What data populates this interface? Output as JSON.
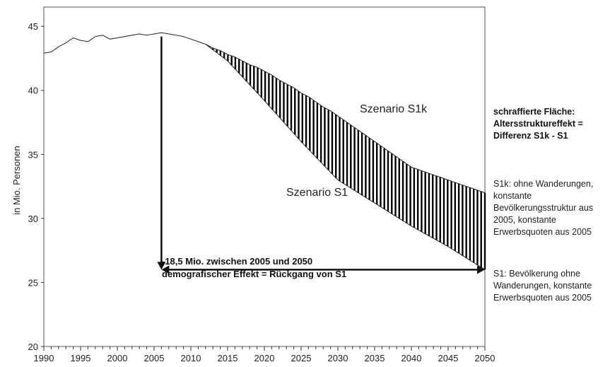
{
  "chart_data": {
    "type": "line",
    "ylabel": "in Mio. Personen",
    "xlim": [
      1990,
      2050
    ],
    "ylim": [
      20,
      46.5
    ],
    "x_ticks_labeled": [
      1990,
      1995,
      2000,
      2005,
      2010,
      2015,
      2020,
      2025,
      2030,
      2035,
      2040,
      2045,
      2050
    ],
    "y_ticks": [
      20,
      25,
      30,
      35,
      40,
      45
    ],
    "grid": false,
    "legend": "none",
    "series": [
      {
        "name": "Szenario S1k",
        "x": [
          1990,
          1991,
          1992,
          1993,
          1994,
          1995,
          1996,
          1997,
          1998,
          1999,
          2000,
          2001,
          2002,
          2003,
          2004,
          2005,
          2006,
          2007,
          2008,
          2009,
          2010,
          2011,
          2012,
          2013,
          2014,
          2015,
          2016,
          2017,
          2018,
          2019,
          2020,
          2021,
          2022,
          2023,
          2024,
          2025,
          2026,
          2027,
          2028,
          2029,
          2030,
          2031,
          2032,
          2033,
          2034,
          2035,
          2036,
          2037,
          2038,
          2039,
          2040,
          2041,
          2042,
          2043,
          2044,
          2045,
          2046,
          2047,
          2048,
          2049,
          2050
        ],
        "values": [
          42.9,
          43.0,
          43.4,
          43.7,
          44.1,
          43.9,
          43.8,
          44.2,
          44.3,
          44.0,
          44.1,
          44.2,
          44.3,
          44.4,
          44.3,
          44.4,
          44.5,
          44.4,
          44.3,
          44.2,
          44.0,
          43.8,
          43.6,
          43.3,
          43.1,
          42.8,
          42.6,
          42.3,
          42.0,
          41.8,
          41.5,
          41.2,
          40.8,
          40.5,
          40.2,
          39.8,
          39.5,
          39.1,
          38.7,
          38.4,
          38.0,
          37.6,
          37.2,
          36.8,
          36.4,
          36.0,
          35.6,
          35.2,
          34.8,
          34.4,
          34.0,
          33.8,
          33.6,
          33.4,
          33.2,
          33.0,
          32.8,
          32.6,
          32.4,
          32.2,
          32.0
        ]
      },
      {
        "name": "Szenario S1",
        "x": [
          2012,
          2015,
          2020,
          2025,
          2030,
          2035,
          2040,
          2045,
          2050
        ],
        "values": [
          43.6,
          42.3,
          39.2,
          36.0,
          33.0,
          31.2,
          29.4,
          27.8,
          26.0
        ]
      }
    ],
    "annotations": [
      "-18,5 Mio. zwischen 2005 und 2050",
      "demografischer Effekt = Rückgang von S1"
    ]
  },
  "side_text": {
    "hatch_title_1": "schraffierte Fläche:",
    "hatch_title_2": "Altersstrukturеffekt =",
    "hatch_title_3": "Differenz S1k - S1",
    "s1k_1": "S1k: ohne Wanderungen,",
    "s1k_2": "konstante",
    "s1k_3": "Bevölkerungsstruktur aus",
    "s1k_4": "2005, konstante",
    "s1k_5": "Erwerbsquoten aus 2005",
    "s1_1": "S1: Bevölkerung ohne",
    "s1_2": "Wanderungen, konstante",
    "s1_3": "Erwerbsquoten aus 2005"
  }
}
